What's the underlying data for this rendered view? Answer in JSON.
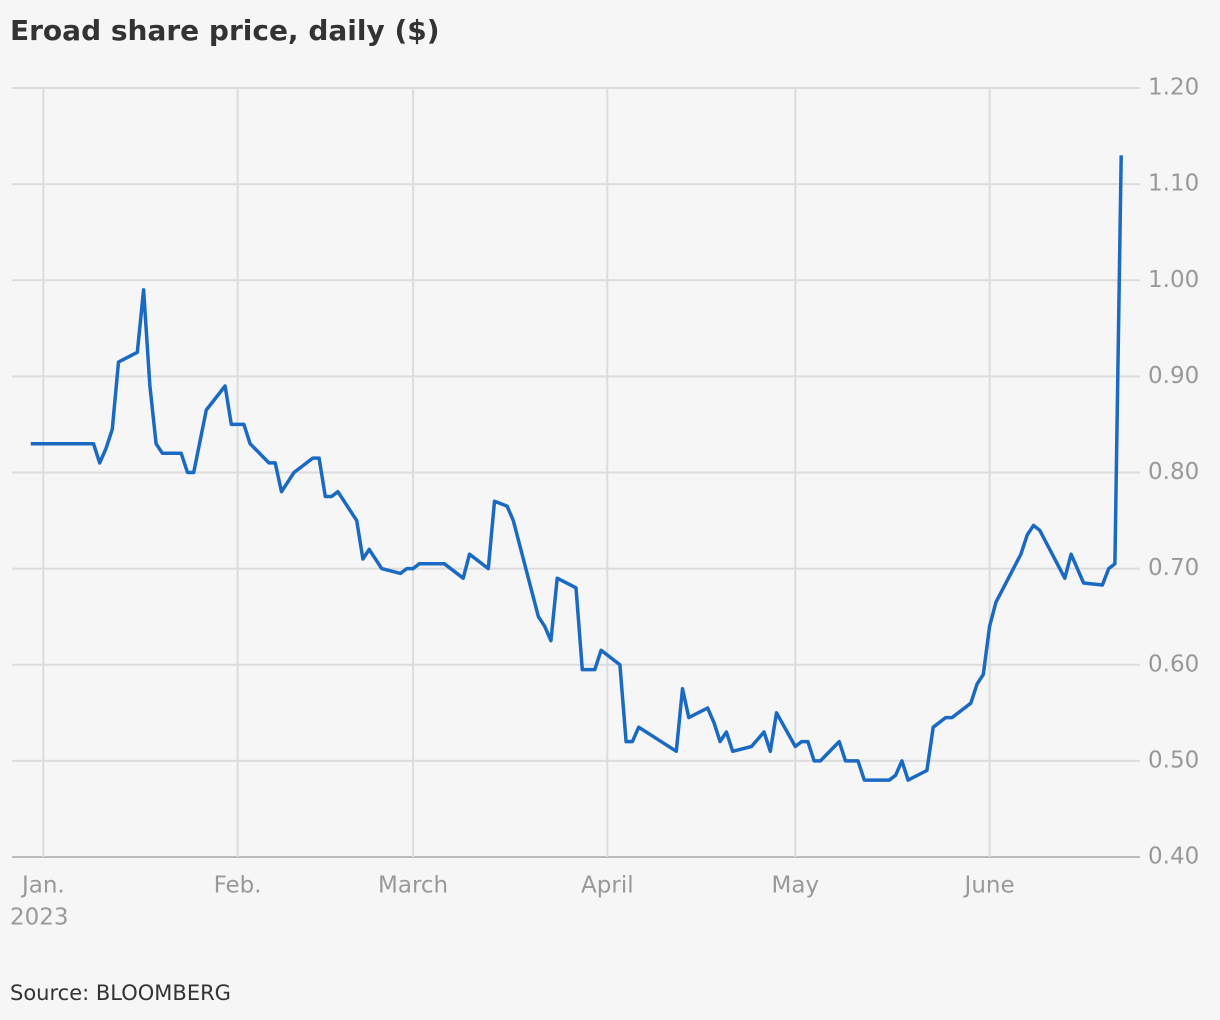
{
  "chart_data": {
    "type": "line",
    "title": "Eroad share price, daily ($)",
    "source": "Source: BLOOMBERG",
    "year_label": "2023",
    "color": "#1a6ac4",
    "grid": true,
    "xlim": [
      -4,
      176
    ],
    "xticks": [
      {
        "value": 1,
        "label": "Jan."
      },
      {
        "value": 32,
        "label": "Feb."
      },
      {
        "value": 60,
        "label": "March"
      },
      {
        "value": 91,
        "label": "April"
      },
      {
        "value": 121,
        "label": "May"
      },
      {
        "value": 152,
        "label": "June"
      }
    ],
    "ylim": [
      0.4,
      1.2
    ],
    "yticks": [
      {
        "value": 0.4,
        "label": "0.40"
      },
      {
        "value": 0.5,
        "label": "0.50"
      },
      {
        "value": 0.6,
        "label": "0.60"
      },
      {
        "value": 0.7,
        "label": "0.70"
      },
      {
        "value": 0.8,
        "label": "0.80"
      },
      {
        "value": 0.9,
        "label": "0.90"
      },
      {
        "value": 1.0,
        "label": "1.00"
      },
      {
        "value": 1.1,
        "label": "1.10"
      },
      {
        "value": 1.2,
        "label": "1.20"
      }
    ],
    "x": [
      -1,
      9,
      10,
      11,
      12,
      13,
      16,
      17,
      18,
      19,
      20,
      23,
      24,
      25,
      27,
      30,
      31,
      33,
      34,
      37,
      38,
      39,
      41,
      44,
      45,
      46,
      47,
      48,
      51,
      52,
      53,
      55,
      58,
      59,
      60,
      61,
      65,
      68,
      69,
      72,
      73,
      75,
      76,
      80,
      81,
      82,
      83,
      86,
      87,
      89,
      90,
      93,
      94,
      95,
      96,
      102,
      103,
      104,
      107,
      108,
      109,
      110,
      111,
      114,
      116,
      117,
      118,
      121,
      122,
      123,
      124,
      125,
      128,
      129,
      131,
      132,
      136,
      137,
      138,
      139,
      142,
      143,
      145,
      146,
      149,
      150,
      151,
      152,
      153,
      157,
      158,
      159,
      160,
      164,
      165,
      167,
      170,
      171,
      172,
      173
    ],
    "values": [
      0.83,
      0.83,
      0.81,
      0.825,
      0.845,
      0.915,
      0.925,
      0.99,
      0.89,
      0.83,
      0.82,
      0.82,
      0.8,
      0.8,
      0.865,
      0.89,
      0.85,
      0.85,
      0.83,
      0.81,
      0.81,
      0.78,
      0.8,
      0.815,
      0.815,
      0.775,
      0.775,
      0.78,
      0.75,
      0.71,
      0.72,
      0.7,
      0.695,
      0.7,
      0.7,
      0.705,
      0.705,
      0.69,
      0.715,
      0.7,
      0.77,
      0.765,
      0.75,
      0.65,
      0.64,
      0.625,
      0.69,
      0.68,
      0.595,
      0.595,
      0.615,
      0.6,
      0.52,
      0.52,
      0.535,
      0.51,
      0.575,
      0.545,
      0.555,
      0.54,
      0.52,
      0.53,
      0.51,
      0.515,
      0.53,
      0.51,
      0.55,
      0.515,
      0.52,
      0.52,
      0.5,
      0.5,
      0.52,
      0.5,
      0.5,
      0.48,
      0.48,
      0.485,
      0.5,
      0.48,
      0.49,
      0.535,
      0.545,
      0.545,
      0.56,
      0.58,
      0.59,
      0.64,
      0.665,
      0.715,
      0.735,
      0.745,
      0.74,
      0.69,
      0.715,
      0.685,
      0.683,
      0.7,
      0.705,
      1.13
    ]
  }
}
